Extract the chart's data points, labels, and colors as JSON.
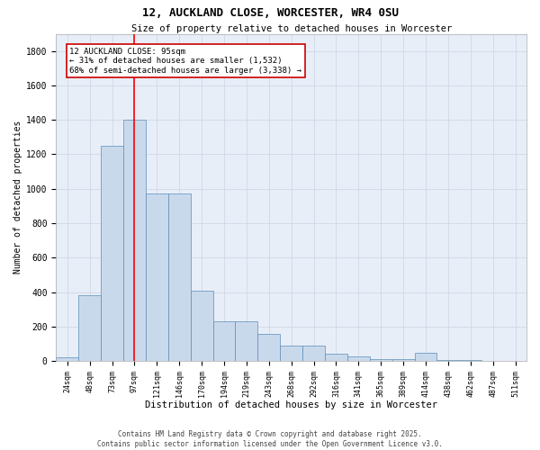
{
  "title_line1": "12, AUCKLAND CLOSE, WORCESTER, WR4 0SU",
  "title_line2": "Size of property relative to detached houses in Worcester",
  "xlabel": "Distribution of detached houses by size in Worcester",
  "ylabel": "Number of detached properties",
  "categories": [
    "24sqm",
    "48sqm",
    "73sqm",
    "97sqm",
    "121sqm",
    "146sqm",
    "170sqm",
    "194sqm",
    "219sqm",
    "243sqm",
    "268sqm",
    "292sqm",
    "316sqm",
    "341sqm",
    "365sqm",
    "389sqm",
    "414sqm",
    "438sqm",
    "462sqm",
    "487sqm",
    "511sqm"
  ],
  "values": [
    20,
    380,
    1250,
    1400,
    970,
    970,
    410,
    230,
    230,
    155,
    90,
    90,
    40,
    25,
    10,
    10,
    50,
    5,
    5,
    2,
    0
  ],
  "bar_color": "#c9d9ec",
  "bar_edge_color": "#5b8db8",
  "red_line_index": 3,
  "annotation_text": "12 AUCKLAND CLOSE: 95sqm\n← 31% of detached houses are smaller (1,532)\n68% of semi-detached houses are larger (3,338) →",
  "annotation_box_color": "#ffffff",
  "annotation_edge_color": "#cc0000",
  "ylim": [
    0,
    1900
  ],
  "yticks": [
    0,
    200,
    400,
    600,
    800,
    1000,
    1200,
    1400,
    1600,
    1800
  ],
  "grid_color": "#d0d8e8",
  "background_color": "#e8eef8",
  "footer_line1": "Contains HM Land Registry data © Crown copyright and database right 2025.",
  "footer_line2": "Contains public sector information licensed under the Open Government Licence v3.0."
}
